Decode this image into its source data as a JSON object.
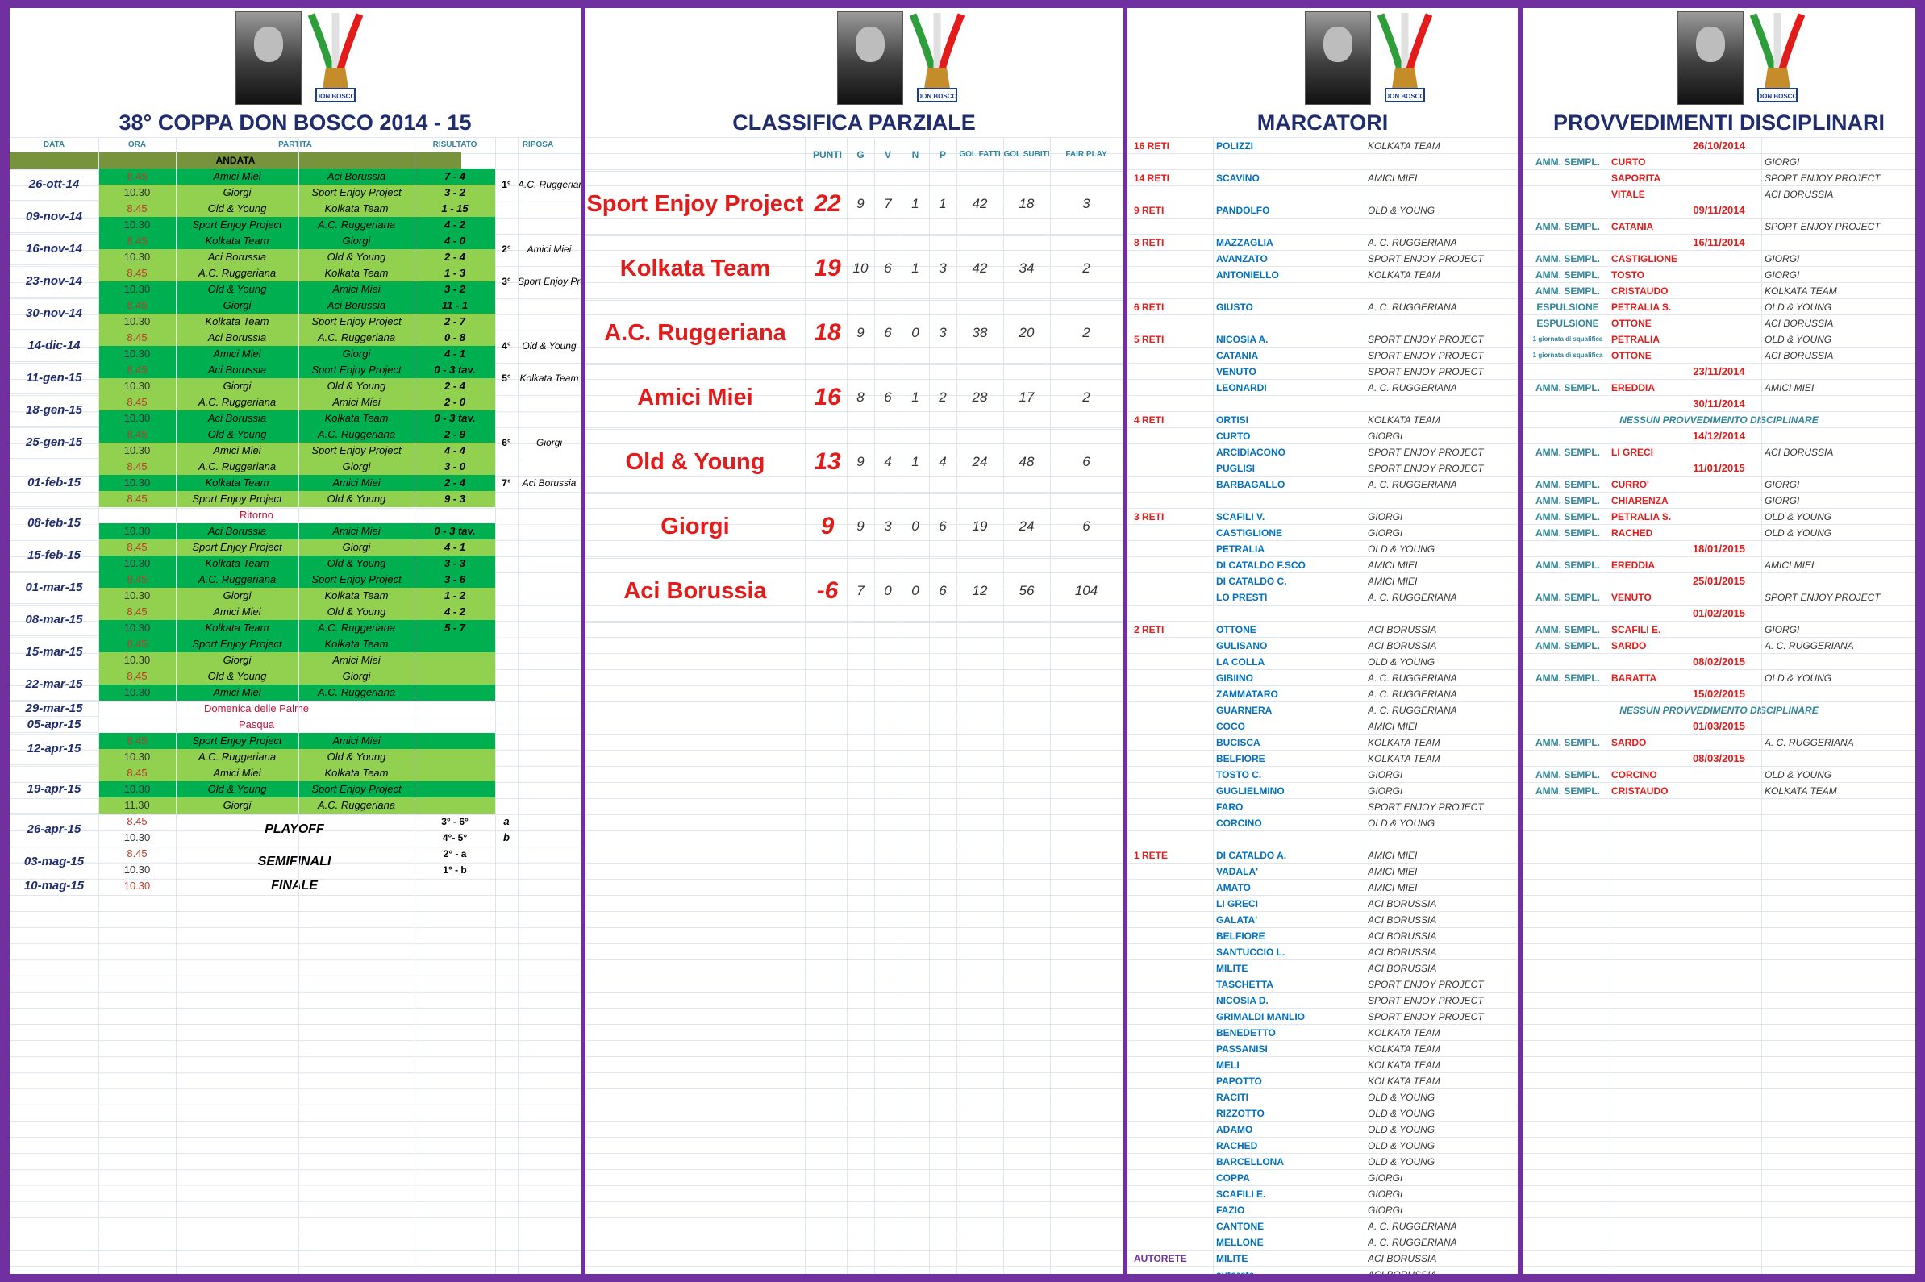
{
  "calendar": {
    "title": "38° COPPA DON BOSCO 2014 - 15",
    "logo_text": "DON BOSCO",
    "headers": {
      "date": "DATA",
      "time": "ORA",
      "match": "PARTITA",
      "result": "RISULTATO",
      "rest": "RIPOSA"
    },
    "andata": "ANDATA",
    "groups": [
      {
        "date": "26-ott-14",
        "rows": [
          [
            "8.45",
            "Amici Miei",
            "Aci Borussia",
            "7 - 4"
          ],
          [
            "10.30",
            "Giorgi",
            "Sport Enjoy Project",
            "3 - 2"
          ]
        ],
        "rank": "1°",
        "rest": "A.C. Ruggeriana"
      },
      {
        "date": "09-nov-14",
        "rows": [
          [
            "8.45",
            "Old & Young",
            "Kolkata Team",
            "1 - 15"
          ],
          [
            "10.30",
            "Sport Enjoy Project",
            "A.C. Ruggeriana",
            "4 - 2"
          ]
        ],
        "rank": "",
        "rest": ""
      },
      {
        "date": "16-nov-14",
        "rows": [
          [
            "8.45",
            "Kolkata Team",
            "Giorgi",
            "4 - 0"
          ],
          [
            "10.30",
            "Aci Borussia",
            "Old & Young",
            "2 - 4"
          ]
        ],
        "rank": "2°",
        "rest": "Amici Miei"
      },
      {
        "date": "23-nov-14",
        "rows": [
          [
            "8.45",
            "A.C. Ruggeriana",
            "Kolkata Team",
            "1 - 3"
          ],
          [
            "10.30",
            "Old & Young",
            "Amici Miei",
            "3 - 2"
          ]
        ],
        "rank": "3°",
        "rest": "Sport Enjoy Project"
      },
      {
        "date": "30-nov-14",
        "rows": [
          [
            "8.45",
            "Giorgi",
            "Aci Borussia",
            "11 - 1"
          ],
          [
            "10.30",
            "Kolkata Team",
            "Sport Enjoy Project",
            "2 - 7"
          ]
        ],
        "rank": "",
        "rest": ""
      },
      {
        "date": "14-dic-14",
        "rows": [
          [
            "8.45",
            "Aci Borussia",
            "A.C. Ruggeriana",
            "0 - 8"
          ],
          [
            "10.30",
            "Amici Miei",
            "Giorgi",
            "4 - 1"
          ]
        ],
        "rank": "4°",
        "rest": "Old & Young"
      },
      {
        "date": "11-gen-15",
        "rows": [
          [
            "8.45",
            "Aci Borussia",
            "Sport Enjoy Project",
            "0 - 3 tav."
          ],
          [
            "10.30",
            "Giorgi",
            "Old & Young",
            "2 - 4"
          ]
        ],
        "rank": "5°",
        "rest": "Kolkata Team"
      },
      {
        "date": "18-gen-15",
        "rows": [
          [
            "8.45",
            "A.C. Ruggeriana",
            "Amici Miei",
            "2 - 0"
          ],
          [
            "10.30",
            "Aci Borussia",
            "Kolkata Team",
            "0 - 3 tav."
          ]
        ],
        "rank": "",
        "rest": ""
      },
      {
        "date": "25-gen-15",
        "rows": [
          [
            "8.45",
            "Old & Young",
            "A.C. Ruggeriana",
            "2 - 9"
          ],
          [
            "10.30",
            "Amici Miei",
            "Sport Enjoy Project",
            "4 - 4"
          ]
        ],
        "rank": "6°",
        "rest": "Giorgi"
      },
      {
        "date": "01-feb-15",
        "rows": [
          [
            "8.45",
            "A.C. Ruggeriana",
            "Giorgi",
            "3 - 0"
          ],
          [
            "10.30",
            "Kolkata Team",
            "Amici Miei",
            "2 - 4"
          ],
          [
            "8.45",
            "Sport Enjoy Project",
            "Old & Young",
            "9 - 3"
          ]
        ],
        "rank": "7°",
        "rest": "Aci Borussia"
      },
      {
        "date": "08-feb-15",
        "note": "Ritorno",
        "rows": [
          [
            "10.30",
            "Aci Borussia",
            "Amici Miei",
            "0 - 3 tav."
          ]
        ],
        "rank": "",
        "rest": ""
      },
      {
        "date": "15-feb-15",
        "rows": [
          [
            "8.45",
            "Sport Enjoy Project",
            "Giorgi",
            "4 - 1"
          ],
          [
            "10.30",
            "Kolkata Team",
            "Old & Young",
            "3 - 3"
          ]
        ],
        "rank": "",
        "rest": ""
      },
      {
        "date": "01-mar-15",
        "rows": [
          [
            "8.45",
            "A.C. Ruggeriana",
            "Sport Enjoy Project",
            "3 - 6"
          ],
          [
            "10.30",
            "Giorgi",
            "Kolkata Team",
            "1 - 2"
          ]
        ],
        "rank": "",
        "rest": ""
      },
      {
        "date": "08-mar-15",
        "rows": [
          [
            "8.45",
            "Amici Miei",
            "Old & Young",
            "4 - 2"
          ],
          [
            "10.30",
            "Kolkata Team",
            "A.C. Ruggeriana",
            "5 - 7"
          ]
        ],
        "rank": "",
        "rest": ""
      },
      {
        "date": "15-mar-15",
        "rows": [
          [
            "8.45",
            "Sport Enjoy Project",
            "Kolkata Team",
            ""
          ],
          [
            "10.30",
            "Giorgi",
            "Amici Miei",
            ""
          ]
        ],
        "rank": "",
        "rest": ""
      },
      {
        "date": "22-mar-15",
        "rows": [
          [
            "8.45",
            "Old & Young",
            "Giorgi",
            ""
          ],
          [
            "10.30",
            "Amici Miei",
            "A.C. Ruggeriana",
            ""
          ]
        ],
        "rank": "",
        "rest": ""
      },
      {
        "date": "29-mar-15",
        "note": "Domenica delle Palme",
        "rows": [],
        "rank": "",
        "rest": ""
      },
      {
        "date": "05-apr-15",
        "note": "Pasqua",
        "rows": [],
        "rank": "",
        "rest": ""
      },
      {
        "date": "12-apr-15",
        "rows": [
          [
            "8.45",
            "Sport Enjoy Project",
            "Amici Miei",
            ""
          ],
          [
            "10.30",
            "A.C. Ruggeriana",
            "Old & Young",
            ""
          ]
        ],
        "rank": "",
        "rest": ""
      },
      {
        "date": "19-apr-15",
        "rows": [
          [
            "8.45",
            "Amici Miei",
            "Kolkata Team",
            ""
          ],
          [
            "10.30",
            "Old & Young",
            "Sport Enjoy Project",
            ""
          ],
          [
            "11.30",
            "Giorgi",
            "A.C. Ruggeriana",
            ""
          ]
        ],
        "rank": "",
        "rest": ""
      }
    ],
    "finals": [
      {
        "date": "26-apr-15",
        "times": [
          "8.45",
          "10.30"
        ],
        "label": "PLAYOFF",
        "pairs": [
          "3° - 6°",
          "4°- 5°"
        ],
        "tags": [
          "a",
          "b"
        ]
      },
      {
        "date": "03-mag-15",
        "times": [
          "8.45",
          "10.30"
        ],
        "label": "SEMIFINALI",
        "pairs": [
          "2° - a",
          "1° - b"
        ],
        "tags": [
          "",
          ""
        ]
      },
      {
        "date": "10-mag-15",
        "times": [
          "10.30"
        ],
        "label": "FINALE",
        "pairs": [],
        "tags": []
      }
    ]
  },
  "standings": {
    "title": "CLASSIFICA PARZIALE",
    "headers": [
      "PUNTI",
      "G",
      "V",
      "N",
      "P",
      "GOL FATTI",
      "GOL SUBITI",
      "FAIR PLAY"
    ],
    "teams": [
      {
        "name": "Sport Enjoy Project",
        "pts": "22",
        "g": "9",
        "v": "7",
        "n": "1",
        "p": "1",
        "gf": "42",
        "gs": "18",
        "fp": "3"
      },
      {
        "name": "Kolkata Team",
        "pts": "19",
        "g": "10",
        "v": "6",
        "n": "1",
        "p": "3",
        "gf": "42",
        "gs": "34",
        "fp": "2"
      },
      {
        "name": "A.C. Ruggeriana",
        "pts": "18",
        "g": "9",
        "v": "6",
        "n": "0",
        "p": "3",
        "gf": "38",
        "gs": "20",
        "fp": "2"
      },
      {
        "name": "Amici Miei",
        "pts": "16",
        "g": "8",
        "v": "6",
        "n": "1",
        "p": "2",
        "gf": "28",
        "gs": "17",
        "fp": "2"
      },
      {
        "name": "Old & Young",
        "pts": "13",
        "g": "9",
        "v": "4",
        "n": "1",
        "p": "4",
        "gf": "24",
        "gs": "48",
        "fp": "6"
      },
      {
        "name": "Giorgi",
        "pts": "9",
        "g": "9",
        "v": "3",
        "n": "0",
        "p": "6",
        "gf": "19",
        "gs": "24",
        "fp": "6"
      },
      {
        "name": "Aci Borussia",
        "pts": "-6",
        "g": "7",
        "v": "0",
        "n": "0",
        "p": "6",
        "gf": "12",
        "gs": "56",
        "fp": "104"
      }
    ]
  },
  "scorers": {
    "title": "MARCATORI",
    "rows": [
      [
        "16 RETI",
        "POLIZZI",
        "KOLKATA TEAM"
      ],
      [
        "",
        "",
        ""
      ],
      [
        "14 RETI",
        "SCAVINO",
        "AMICI MIEI"
      ],
      [
        "",
        "",
        ""
      ],
      [
        "9 RETI",
        "PANDOLFO",
        "OLD & YOUNG"
      ],
      [
        "",
        "",
        ""
      ],
      [
        "8 RETI",
        "MAZZAGLIA",
        "A. C. RUGGERIANA"
      ],
      [
        "",
        "AVANZATO",
        "SPORT ENJOY PROJECT"
      ],
      [
        "",
        "ANTONIELLO",
        "KOLKATA TEAM"
      ],
      [
        "",
        "",
        ""
      ],
      [
        "6 RETI",
        "GIUSTO",
        "A. C. RUGGERIANA"
      ],
      [
        "",
        "",
        ""
      ],
      [
        "5 RETI",
        "NICOSIA A.",
        "SPORT ENJOY PROJECT"
      ],
      [
        "",
        "CATANIA",
        "SPORT ENJOY PROJECT"
      ],
      [
        "",
        "VENUTO",
        "SPORT ENJOY PROJECT"
      ],
      [
        "",
        "LEONARDI",
        "A. C. RUGGERIANA"
      ],
      [
        "",
        "",
        ""
      ],
      [
        "4 RETI",
        "ORTISI",
        "KOLKATA TEAM"
      ],
      [
        "",
        "CURTO",
        "GIORGI"
      ],
      [
        "",
        "ARCIDIACONO",
        "SPORT ENJOY PROJECT"
      ],
      [
        "",
        "PUGLISI",
        "SPORT ENJOY PROJECT"
      ],
      [
        "",
        "BARBAGALLO",
        "A. C. RUGGERIANA"
      ],
      [
        "",
        "",
        ""
      ],
      [
        "3 RETI",
        "SCAFILI V.",
        "GIORGI"
      ],
      [
        "",
        "CASTIGLIONE",
        "GIORGI"
      ],
      [
        "",
        "PETRALIA",
        "OLD & YOUNG"
      ],
      [
        "",
        "DI CATALDO F.SCO",
        "AMICI MIEI"
      ],
      [
        "",
        "DI CATALDO C.",
        "AMICI MIEI"
      ],
      [
        "",
        "LO PRESTI",
        "A. C. RUGGERIANA"
      ],
      [
        "",
        "",
        ""
      ],
      [
        "2 RETI",
        "OTTONE",
        "ACI BORUSSIA"
      ],
      [
        "",
        "GULISANO",
        "ACI BORUSSIA"
      ],
      [
        "",
        "LA COLLA",
        "OLD & YOUNG"
      ],
      [
        "",
        "GIBIINO",
        "A. C. RUGGERIANA"
      ],
      [
        "",
        "ZAMMATARO",
        "A. C. RUGGERIANA"
      ],
      [
        "",
        "GUARNERA",
        "A. C. RUGGERIANA"
      ],
      [
        "",
        "COCO",
        "AMICI MIEI"
      ],
      [
        "",
        "BUCISCA",
        "KOLKATA TEAM"
      ],
      [
        "",
        "BELFIORE",
        "KOLKATA TEAM"
      ],
      [
        "",
        "TOSTO C.",
        "GIORGI"
      ],
      [
        "",
        "GUGLIELMINO",
        "GIORGI"
      ],
      [
        "",
        "FARO",
        "SPORT ENJOY PROJECT"
      ],
      [
        "",
        "CORCINO",
        "OLD & YOUNG"
      ],
      [
        "",
        "",
        ""
      ],
      [
        "1 RETE",
        "DI CATALDO A.",
        "AMICI MIEI"
      ],
      [
        "",
        "VADALA'",
        "AMICI MIEI"
      ],
      [
        "",
        "AMATO",
        "AMICI MIEI"
      ],
      [
        "",
        "LI GRECI",
        "ACI BORUSSIA"
      ],
      [
        "",
        "GALATA'",
        "ACI BORUSSIA"
      ],
      [
        "",
        "BELFIORE",
        "ACI BORUSSIA"
      ],
      [
        "",
        "SANTUCCIO L.",
        "ACI BORUSSIA"
      ],
      [
        "",
        "MILITE",
        "ACI BORUSSIA"
      ],
      [
        "",
        "TASCHETTA",
        "SPORT ENJOY PROJECT"
      ],
      [
        "",
        "NICOSIA D.",
        "SPORT ENJOY PROJECT"
      ],
      [
        "",
        "GRIMALDI MANLIO",
        "SPORT ENJOY PROJECT"
      ],
      [
        "",
        "BENEDETTO",
        "KOLKATA TEAM"
      ],
      [
        "",
        "PASSANISI",
        "KOLKATA TEAM"
      ],
      [
        "",
        "MELI",
        "KOLKATA TEAM"
      ],
      [
        "",
        "PAPOTTO",
        "KOLKATA TEAM"
      ],
      [
        "",
        "RACITI",
        "OLD & YOUNG"
      ],
      [
        "",
        "RIZZOTTO",
        "OLD & YOUNG"
      ],
      [
        "",
        "ADAMO",
        "OLD & YOUNG"
      ],
      [
        "",
        "RACHED",
        "OLD & YOUNG"
      ],
      [
        "",
        "BARCELLONA",
        "OLD & YOUNG"
      ],
      [
        "",
        "COPPA",
        "GIORGI"
      ],
      [
        "",
        "SCAFILI E.",
        "GIORGI"
      ],
      [
        "",
        "FAZIO",
        "GIORGI"
      ],
      [
        "",
        "CANTONE",
        "A. C. RUGGERIANA"
      ],
      [
        "",
        "MELLONE",
        "A. C. RUGGERIANA"
      ],
      [
        "AUTORETE",
        "MILITE",
        "ACI BORUSSIA"
      ],
      [
        "",
        "autorete",
        "ACI BORUSSIA"
      ]
    ]
  },
  "discipline": {
    "title": "PROVVEDIMENTI DISCIPLINARI",
    "rows": [
      {
        "t": "date",
        "v": "26/10/2014"
      },
      {
        "t": "r",
        "k": "AMM. SEMPL.",
        "n": "CURTO",
        "team": "GIORGI"
      },
      {
        "t": "r",
        "k": "",
        "n": "SAPORITA",
        "team": "SPORT ENJOY PROJECT"
      },
      {
        "t": "r",
        "k": "",
        "n": "VITALE",
        "team": "ACI BORUSSIA"
      },
      {
        "t": "date",
        "v": "09/11/2014"
      },
      {
        "t": "r",
        "k": "AMM. SEMPL.",
        "n": "CATANIA",
        "team": "SPORT ENJOY PROJECT"
      },
      {
        "t": "date",
        "v": "16/11/2014"
      },
      {
        "t": "r",
        "k": "AMM. SEMPL.",
        "n": "CASTIGLIONE",
        "team": "GIORGI"
      },
      {
        "t": "r",
        "k": "AMM. SEMPL.",
        "n": "TOSTO",
        "team": "GIORGI"
      },
      {
        "t": "r",
        "k": "AMM. SEMPL.",
        "n": "CRISTAUDO",
        "team": "KOLKATA TEAM"
      },
      {
        "t": "r",
        "k": "ESPULSIONE",
        "n": "PETRALIA S.",
        "team": "OLD & YOUNG"
      },
      {
        "t": "r",
        "k": "ESPULSIONE",
        "n": "OTTONE",
        "team": "ACI BORUSSIA"
      },
      {
        "t": "r",
        "k": "1 giornata di squalifica",
        "n": "PETRALIA",
        "team": "OLD & YOUNG",
        "small": true
      },
      {
        "t": "r",
        "k": "1 giornata di squalifica",
        "n": "OTTONE",
        "team": "ACI BORUSSIA",
        "small": true
      },
      {
        "t": "date",
        "v": "23/11/2014"
      },
      {
        "t": "r",
        "k": "AMM. SEMPL.",
        "n": "EREDDIA",
        "team": "AMICI MIEI"
      },
      {
        "t": "date",
        "v": "30/11/2014"
      },
      {
        "t": "note",
        "v": "NESSUN PROVVEDIMENTO DISCIPLINARE"
      },
      {
        "t": "date",
        "v": "14/12/2014"
      },
      {
        "t": "r",
        "k": "AMM. SEMPL.",
        "n": "LI GRECI",
        "team": "ACI BORUSSIA"
      },
      {
        "t": "date",
        "v": "11/01/2015"
      },
      {
        "t": "r",
        "k": "AMM. SEMPL.",
        "n": "CURRO'",
        "team": "GIORGI"
      },
      {
        "t": "r",
        "k": "AMM. SEMPL.",
        "n": "CHIARENZA",
        "team": "GIORGI"
      },
      {
        "t": "r",
        "k": "AMM. SEMPL.",
        "n": "PETRALIA S.",
        "team": "OLD & YOUNG"
      },
      {
        "t": "r",
        "k": "AMM. SEMPL.",
        "n": "RACHED",
        "team": "OLD & YOUNG"
      },
      {
        "t": "date",
        "v": "18/01/2015"
      },
      {
        "t": "r",
        "k": "AMM. SEMPL.",
        "n": "EREDDIA",
        "team": "AMICI MIEI"
      },
      {
        "t": "date",
        "v": "25/01/2015"
      },
      {
        "t": "r",
        "k": "AMM. SEMPL.",
        "n": "VENUTO",
        "team": "SPORT ENJOY PROJECT"
      },
      {
        "t": "date",
        "v": "01/02/2015"
      },
      {
        "t": "r",
        "k": "AMM. SEMPL.",
        "n": "SCAFILI E.",
        "team": "GIORGI"
      },
      {
        "t": "r",
        "k": "AMM. SEMPL.",
        "n": "SARDO",
        "team": "A. C. RUGGERIANA"
      },
      {
        "t": "date",
        "v": "08/02/2015"
      },
      {
        "t": "r",
        "k": "AMM. SEMPL.",
        "n": "BARATTA",
        "team": "OLD & YOUNG"
      },
      {
        "t": "date",
        "v": "15/02/2015"
      },
      {
        "t": "note",
        "v": "NESSUN PROVVEDIMENTO DISCIPLINARE"
      },
      {
        "t": "date",
        "v": "01/03/2015"
      },
      {
        "t": "r",
        "k": "AMM. SEMPL.",
        "n": "SARDO",
        "team": "A. C. RUGGERIANA"
      },
      {
        "t": "date",
        "v": "08/03/2015"
      },
      {
        "t": "r",
        "k": "AMM. SEMPL.",
        "n": "CORCINO",
        "team": "OLD & YOUNG"
      },
      {
        "t": "r",
        "k": "AMM. SEMPL.",
        "n": "CRISTAUDO",
        "team": "KOLKATA TEAM"
      }
    ]
  },
  "colors": {
    "frame": "#7030A0",
    "green_dark": "#00B050",
    "green_light": "#92D050",
    "olive": "#77933C",
    "navy": "#1F2D6E",
    "red": "#E21B1B",
    "teal": "#31859C",
    "blue": "#0070C0",
    "purple": "#7030A0"
  }
}
